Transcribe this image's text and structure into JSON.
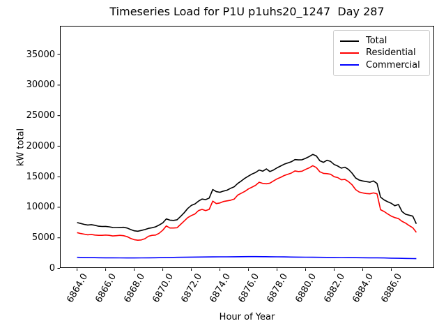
{
  "title": "Timeseries Load for P1U p1uhs20_1247  Day 287",
  "chart_data": {
    "type": "line",
    "title": "Timeseries Load for P1U p1uhs20_1247  Day 287",
    "xlabel": "Hour of Year",
    "ylabel": "kW total",
    "xlim": [
      6862.8,
      6889.0
    ],
    "ylim": [
      0,
      39700
    ],
    "grid": false,
    "legend_position": "upper right",
    "xtick_rotation": 60,
    "xticks": [
      "6864.0",
      "6866.0",
      "6868.0",
      "6870.0",
      "6872.0",
      "6874.0",
      "6876.0",
      "6878.0",
      "6880.0",
      "6882.0",
      "6884.0",
      "6886.0"
    ],
    "yticks": [
      "0",
      "5000",
      "10000",
      "15000",
      "20000",
      "25000",
      "30000",
      "35000"
    ],
    "series": [
      {
        "name": "Total",
        "color": "#000000",
        "points": [
          [
            6864.0,
            7500
          ],
          [
            6864.25,
            7350
          ],
          [
            6864.5,
            7200
          ],
          [
            6864.75,
            7100
          ],
          [
            6865.0,
            7150
          ],
          [
            6865.25,
            7050
          ],
          [
            6865.5,
            6900
          ],
          [
            6865.75,
            6850
          ],
          [
            6866.0,
            6870
          ],
          [
            6866.25,
            6800
          ],
          [
            6866.5,
            6700
          ],
          [
            6866.75,
            6680
          ],
          [
            6867.0,
            6700
          ],
          [
            6867.25,
            6720
          ],
          [
            6867.5,
            6600
          ],
          [
            6867.75,
            6350
          ],
          [
            6868.0,
            6150
          ],
          [
            6868.25,
            6080
          ],
          [
            6868.5,
            6200
          ],
          [
            6868.75,
            6350
          ],
          [
            6869.0,
            6550
          ],
          [
            6869.25,
            6650
          ],
          [
            6869.5,
            6800
          ],
          [
            6869.75,
            7100
          ],
          [
            6870.0,
            7450
          ],
          [
            6870.25,
            8100
          ],
          [
            6870.5,
            7900
          ],
          [
            6870.75,
            7850
          ],
          [
            6871.0,
            7950
          ],
          [
            6871.25,
            8500
          ],
          [
            6871.5,
            9100
          ],
          [
            6871.75,
            9800
          ],
          [
            6872.0,
            10300
          ],
          [
            6872.25,
            10550
          ],
          [
            6872.5,
            11000
          ],
          [
            6872.75,
            11350
          ],
          [
            6873.0,
            11250
          ],
          [
            6873.25,
            11500
          ],
          [
            6873.5,
            12900
          ],
          [
            6873.75,
            12550
          ],
          [
            6874.0,
            12450
          ],
          [
            6874.25,
            12650
          ],
          [
            6874.5,
            12800
          ],
          [
            6874.75,
            13100
          ],
          [
            6875.0,
            13350
          ],
          [
            6875.25,
            13900
          ],
          [
            6875.5,
            14300
          ],
          [
            6875.75,
            14750
          ],
          [
            6876.0,
            15100
          ],
          [
            6876.25,
            15450
          ],
          [
            6876.5,
            15700
          ],
          [
            6876.75,
            16100
          ],
          [
            6877.0,
            15900
          ],
          [
            6877.25,
            16280
          ],
          [
            6877.5,
            15850
          ],
          [
            6877.75,
            16100
          ],
          [
            6878.0,
            16450
          ],
          [
            6878.25,
            16750
          ],
          [
            6878.5,
            17050
          ],
          [
            6878.75,
            17250
          ],
          [
            6879.0,
            17450
          ],
          [
            6879.25,
            17800
          ],
          [
            6879.5,
            17750
          ],
          [
            6879.75,
            17780
          ],
          [
            6880.0,
            18000
          ],
          [
            6880.25,
            18300
          ],
          [
            6880.5,
            18650
          ],
          [
            6880.75,
            18400
          ],
          [
            6881.0,
            17600
          ],
          [
            6881.25,
            17350
          ],
          [
            6881.5,
            17700
          ],
          [
            6881.75,
            17500
          ],
          [
            6882.0,
            17000
          ],
          [
            6882.25,
            16750
          ],
          [
            6882.5,
            16400
          ],
          [
            6882.75,
            16550
          ],
          [
            6883.0,
            16200
          ],
          [
            6883.25,
            15600
          ],
          [
            6883.5,
            14800
          ],
          [
            6883.75,
            14450
          ],
          [
            6884.0,
            14300
          ],
          [
            6884.25,
            14200
          ],
          [
            6884.5,
            14100
          ],
          [
            6884.75,
            14300
          ],
          [
            6885.0,
            13900
          ],
          [
            6885.25,
            11650
          ],
          [
            6885.5,
            11200
          ],
          [
            6885.75,
            10900
          ],
          [
            6886.0,
            10650
          ],
          [
            6886.25,
            10250
          ],
          [
            6886.5,
            10450
          ],
          [
            6886.75,
            9300
          ],
          [
            6887.0,
            8850
          ],
          [
            6887.25,
            8700
          ],
          [
            6887.5,
            8550
          ],
          [
            6887.75,
            7300
          ]
        ]
      },
      {
        "name": "Residential",
        "color": "#ff0000",
        "points": [
          [
            6864.0,
            5850
          ],
          [
            6864.25,
            5700
          ],
          [
            6864.5,
            5600
          ],
          [
            6864.75,
            5500
          ],
          [
            6865.0,
            5550
          ],
          [
            6865.25,
            5450
          ],
          [
            6865.5,
            5400
          ],
          [
            6865.75,
            5400
          ],
          [
            6866.0,
            5450
          ],
          [
            6866.25,
            5400
          ],
          [
            6866.5,
            5300
          ],
          [
            6866.75,
            5350
          ],
          [
            6867.0,
            5400
          ],
          [
            6867.25,
            5350
          ],
          [
            6867.5,
            5200
          ],
          [
            6867.75,
            4900
          ],
          [
            6868.0,
            4700
          ],
          [
            6868.25,
            4600
          ],
          [
            6868.5,
            4650
          ],
          [
            6868.75,
            4850
          ],
          [
            6869.0,
            5250
          ],
          [
            6869.25,
            5400
          ],
          [
            6869.5,
            5450
          ],
          [
            6869.75,
            5750
          ],
          [
            6870.0,
            6250
          ],
          [
            6870.25,
            6950
          ],
          [
            6870.5,
            6600
          ],
          [
            6870.75,
            6600
          ],
          [
            6871.0,
            6650
          ],
          [
            6871.25,
            7200
          ],
          [
            6871.5,
            7750
          ],
          [
            6871.75,
            8300
          ],
          [
            6872.0,
            8650
          ],
          [
            6872.25,
            8900
          ],
          [
            6872.5,
            9450
          ],
          [
            6872.75,
            9650
          ],
          [
            6873.0,
            9450
          ],
          [
            6873.25,
            9650
          ],
          [
            6873.5,
            11000
          ],
          [
            6873.75,
            10600
          ],
          [
            6874.0,
            10700
          ],
          [
            6874.25,
            10950
          ],
          [
            6874.5,
            11050
          ],
          [
            6874.75,
            11150
          ],
          [
            6875.0,
            11350
          ],
          [
            6875.25,
            12000
          ],
          [
            6875.5,
            12300
          ],
          [
            6875.75,
            12600
          ],
          [
            6876.0,
            13000
          ],
          [
            6876.25,
            13300
          ],
          [
            6876.5,
            13600
          ],
          [
            6876.75,
            14100
          ],
          [
            6877.0,
            13900
          ],
          [
            6877.25,
            13850
          ],
          [
            6877.5,
            13950
          ],
          [
            6877.75,
            14300
          ],
          [
            6878.0,
            14650
          ],
          [
            6878.25,
            14900
          ],
          [
            6878.5,
            15200
          ],
          [
            6878.75,
            15400
          ],
          [
            6879.0,
            15600
          ],
          [
            6879.25,
            15950
          ],
          [
            6879.5,
            15850
          ],
          [
            6879.75,
            15900
          ],
          [
            6880.0,
            16200
          ],
          [
            6880.25,
            16450
          ],
          [
            6880.5,
            16800
          ],
          [
            6880.75,
            16500
          ],
          [
            6881.0,
            15800
          ],
          [
            6881.25,
            15550
          ],
          [
            6881.5,
            15500
          ],
          [
            6881.75,
            15400
          ],
          [
            6882.0,
            15000
          ],
          [
            6882.25,
            14850
          ],
          [
            6882.5,
            14500
          ],
          [
            6882.75,
            14550
          ],
          [
            6883.0,
            14200
          ],
          [
            6883.25,
            13700
          ],
          [
            6883.5,
            12900
          ],
          [
            6883.75,
            12500
          ],
          [
            6884.0,
            12350
          ],
          [
            6884.25,
            12250
          ],
          [
            6884.5,
            12200
          ],
          [
            6884.75,
            12350
          ],
          [
            6885.0,
            12200
          ],
          [
            6885.25,
            9600
          ],
          [
            6885.5,
            9300
          ],
          [
            6885.75,
            8900
          ],
          [
            6886.0,
            8550
          ],
          [
            6886.25,
            8300
          ],
          [
            6886.5,
            8150
          ],
          [
            6886.75,
            7700
          ],
          [
            6887.0,
            7400
          ],
          [
            6887.25,
            7000
          ],
          [
            6887.5,
            6650
          ],
          [
            6887.75,
            5900
          ]
        ]
      },
      {
        "name": "Commercial",
        "color": "#0000ff",
        "points": [
          [
            6864.0,
            1800
          ],
          [
            6864.5,
            1780
          ],
          [
            6865.0,
            1760
          ],
          [
            6865.5,
            1740
          ],
          [
            6866.0,
            1730
          ],
          [
            6866.5,
            1720
          ],
          [
            6867.0,
            1710
          ],
          [
            6867.5,
            1700
          ],
          [
            6868.0,
            1700
          ],
          [
            6868.5,
            1710
          ],
          [
            6869.0,
            1720
          ],
          [
            6869.5,
            1740
          ],
          [
            6870.0,
            1760
          ],
          [
            6870.5,
            1780
          ],
          [
            6871.0,
            1800
          ],
          [
            6871.5,
            1820
          ],
          [
            6872.0,
            1840
          ],
          [
            6872.5,
            1850
          ],
          [
            6873.0,
            1860
          ],
          [
            6873.5,
            1870
          ],
          [
            6874.0,
            1880
          ],
          [
            6874.5,
            1890
          ],
          [
            6875.0,
            1900
          ],
          [
            6875.5,
            1910
          ],
          [
            6876.0,
            1920
          ],
          [
            6876.5,
            1920
          ],
          [
            6877.0,
            1910
          ],
          [
            6877.5,
            1900
          ],
          [
            6878.0,
            1890
          ],
          [
            6878.5,
            1870
          ],
          [
            6879.0,
            1850
          ],
          [
            6879.5,
            1840
          ],
          [
            6880.0,
            1830
          ],
          [
            6880.5,
            1820
          ],
          [
            6881.0,
            1800
          ],
          [
            6881.5,
            1790
          ],
          [
            6882.0,
            1780
          ],
          [
            6882.5,
            1770
          ],
          [
            6883.0,
            1760
          ],
          [
            6883.5,
            1750
          ],
          [
            6884.0,
            1740
          ],
          [
            6884.5,
            1730
          ],
          [
            6885.0,
            1720
          ],
          [
            6885.5,
            1700
          ],
          [
            6886.0,
            1670
          ],
          [
            6886.5,
            1640
          ],
          [
            6887.0,
            1620
          ],
          [
            6887.5,
            1600
          ],
          [
            6887.75,
            1590
          ]
        ]
      }
    ]
  }
}
